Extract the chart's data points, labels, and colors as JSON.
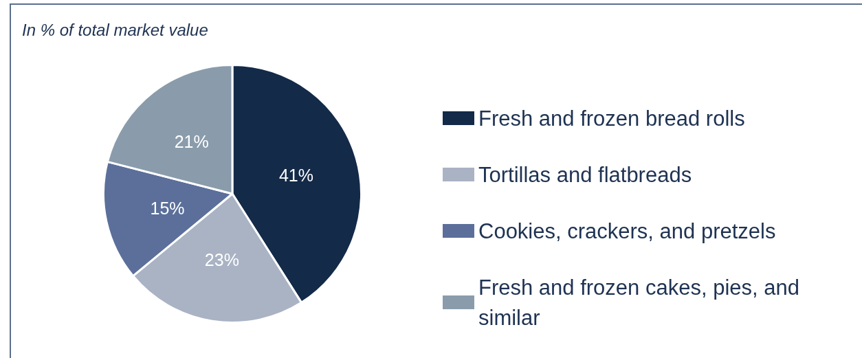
{
  "chart_data": {
    "type": "pie",
    "title": "In % of total market value",
    "categories": [
      "Fresh and frozen bread rolls",
      "Tortillas and flatbreads",
      "Cookies, crackers, and pretzels",
      "Fresh and frozen cakes, pies, and similar"
    ],
    "values": [
      41,
      23,
      15,
      21
    ],
    "colors": [
      "#132a48",
      "#a9b3c4",
      "#5b6f9a",
      "#8a9cab"
    ],
    "value_labels": [
      "41%",
      "23%",
      "15%",
      "21%"
    ],
    "legend": "right"
  }
}
